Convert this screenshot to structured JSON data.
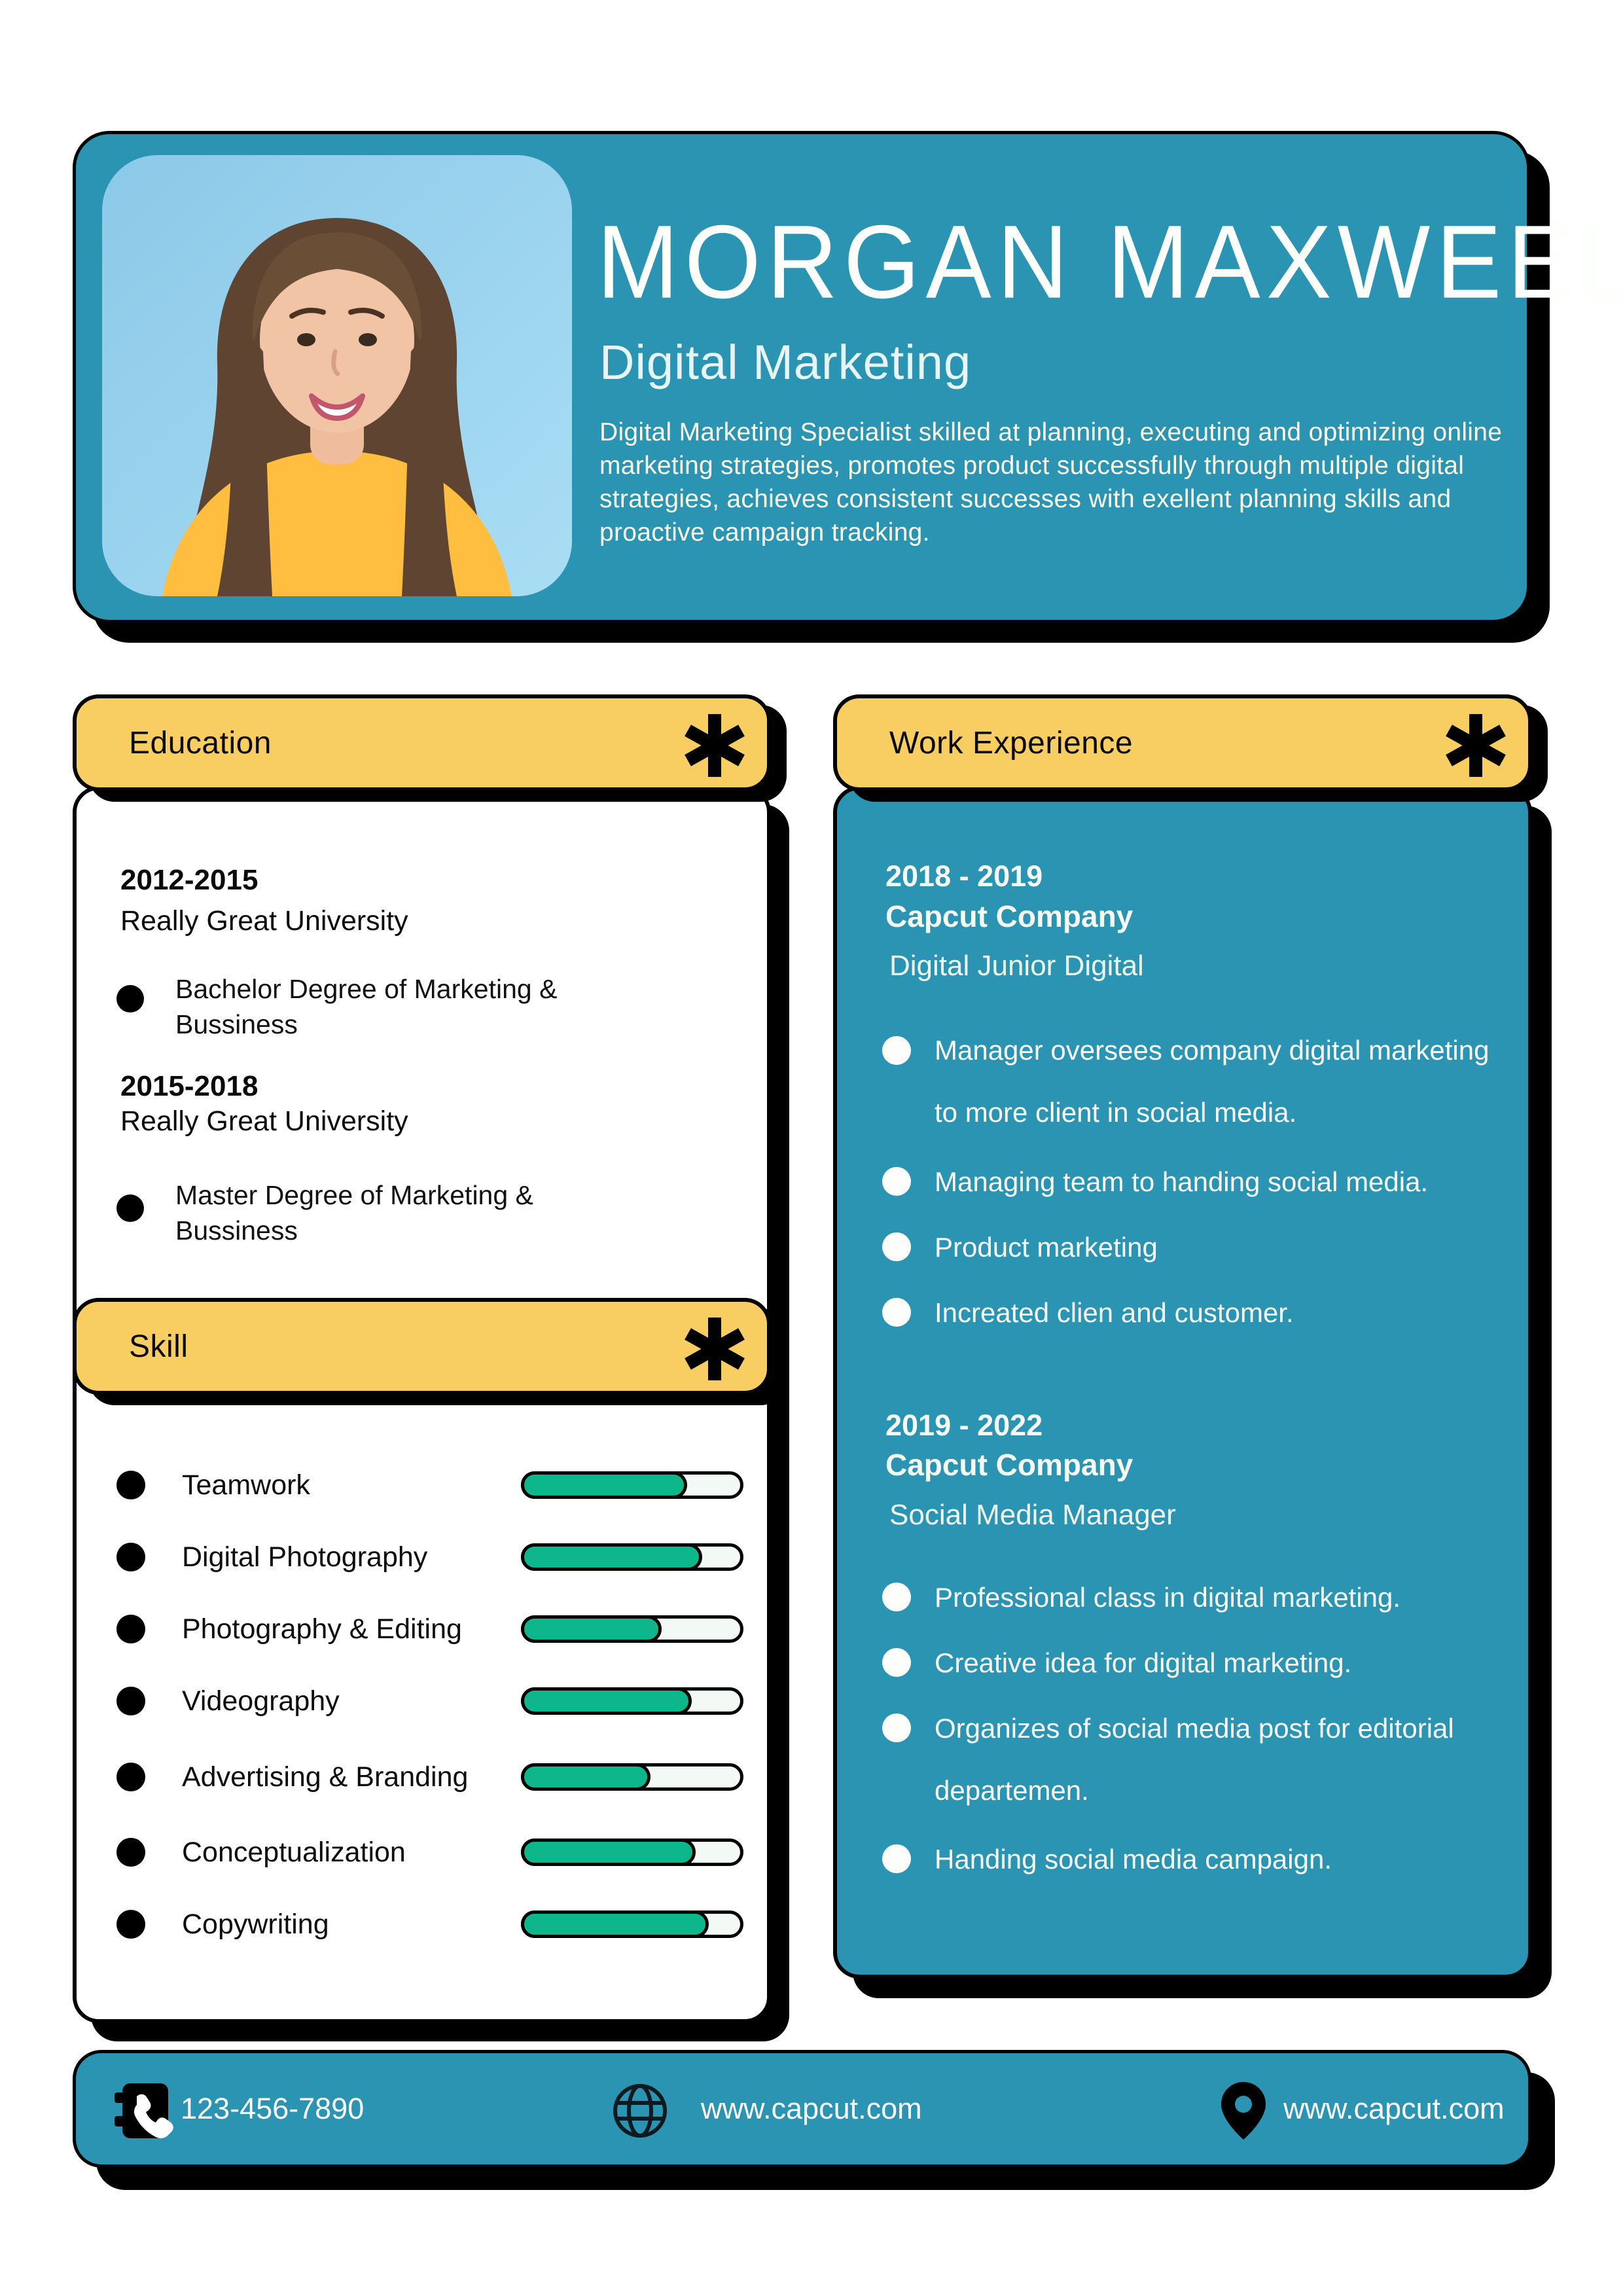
{
  "header": {
    "name": "MORGAN MAXWEEL",
    "title": "Digital Marketing",
    "summary": "Digital Marketing Specialist skilled at planning, executing and optimizing online marketing strategies, promotes product successfully through multiple digital strategies, achieves consistent successes with exellent planning skills and proactive campaign tracking."
  },
  "education": {
    "heading": "Education",
    "entries": [
      {
        "period": "2012-2015",
        "school": "Really Great University",
        "degree": "Bachelor Degree of Marketing & Bussiness"
      },
      {
        "period": "2015-2018",
        "school": "Really Great University",
        "degree": "Master Degree of Marketing & Bussiness"
      }
    ]
  },
  "skills": {
    "heading": "Skill",
    "items": [
      {
        "label": "Teamwork",
        "percent": 77
      },
      {
        "label": "Digital Photography",
        "percent": 84
      },
      {
        "label": "Photography & Editing",
        "percent": 65
      },
      {
        "label": "Videography",
        "percent": 79
      },
      {
        "label": "Advertising & Branding",
        "percent": 60
      },
      {
        "label": "Conceptualization",
        "percent": 81
      },
      {
        "label": "Copywriting",
        "percent": 87
      }
    ]
  },
  "work": {
    "heading": "Work Experience",
    "entries": [
      {
        "period": "2018 - 2019",
        "company": "Capcut Company",
        "role": "Digital Junior Digital",
        "bullets": [
          "Manager oversees company digital marketing to more client in social media.",
          "Managing team to handing social media.",
          "Product marketing",
          "Increated clien and customer."
        ]
      },
      {
        "period": "2019 - 2022",
        "company": "Capcut Company",
        "role": "Social Media Manager",
        "bullets": [
          "Professional class in digital marketing.",
          "Creative idea for digital marketing.",
          "Organizes of social media post for editorial departemen.",
          "Handing social media campaign."
        ]
      }
    ]
  },
  "footer": {
    "phone": "123-456-7890",
    "website": "www.capcut.com",
    "location": "www.capcut.com"
  },
  "icons": {
    "section_marker": "asterisk-icon",
    "phone": "phone-icon",
    "website": "globe-icon",
    "location": "map-pin-icon"
  },
  "colors": {
    "teal": "#2B94B3",
    "yellow": "#F8CE63",
    "green": "#0DB78B",
    "track": "#F3FAF6",
    "black": "#000000",
    "photo_sky": "#93CEEA",
    "sweater_yellow": "#FFBE3F"
  }
}
